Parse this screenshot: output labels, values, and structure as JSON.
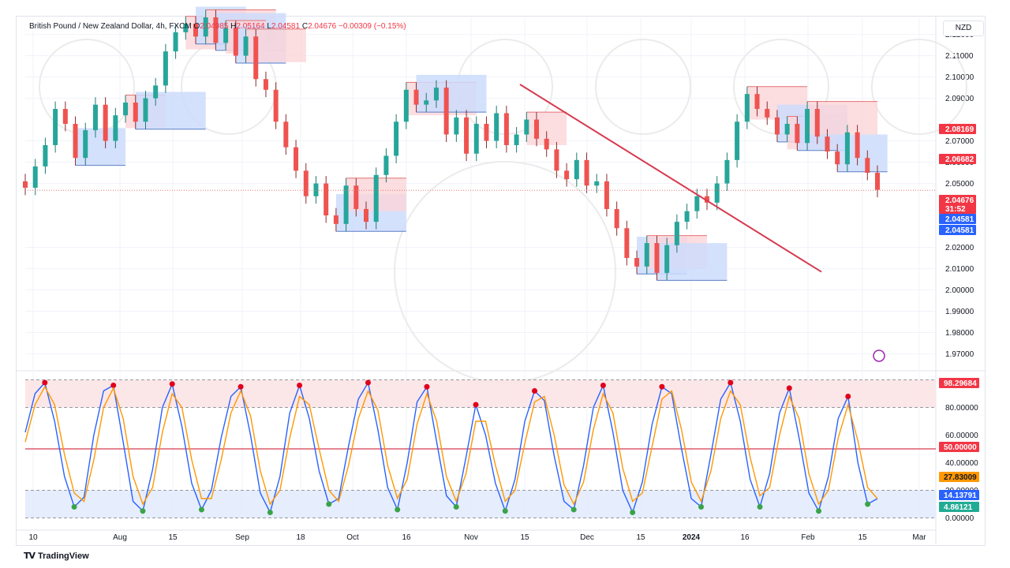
{
  "legend": {
    "symbol": "British Pound / New Zealand Dollar, 4h, FXCM",
    "o_label": "O",
    "o": "2.04985",
    "h_label": "H",
    "h": "2.05164",
    "l_label": "L",
    "l": "2.04581",
    "c_label": "C",
    "c": "2.04676",
    "change": "−0.00309 (−0.15%)"
  },
  "currency_button": "NZD",
  "footer": {
    "brand": "TradingView"
  },
  "colors": {
    "up": "#26a69a",
    "down": "#ef5350",
    "trendline": "#d63a50",
    "supply": "#fbd4d8",
    "demand": "#cddcfc",
    "stoch_k": "#2962ff",
    "stoch_d": "#ff9800",
    "red_tag": "#f23645",
    "blue_tag": "#2962ff",
    "green_tag": "#22ab94"
  },
  "chart_data": [
    {
      "type": "candlestick",
      "title": "British Pound / New Zealand Dollar, 4h, FXCM",
      "y_axis_ticks": [
        "2.12000",
        "2.11000",
        "2.10000",
        "2.09000",
        "2.07000",
        "2.06000",
        "2.05000",
        "2.02000",
        "2.01000",
        "2.00000",
        "1.99000",
        "1.98000",
        "1.97000"
      ],
      "ylim": [
        1.965,
        2.128
      ],
      "x_axis_ticks": [
        "10",
        "Aug",
        "15",
        "Sep",
        "18",
        "Oct",
        "16",
        "Nov",
        "15",
        "Dec",
        "15",
        "2024",
        "16",
        "Feb",
        "15",
        "Mar"
      ],
      "price_tags": [
        {
          "text": "2.08169",
          "kind": "red"
        },
        {
          "text": "2.06682",
          "kind": "red"
        },
        {
          "text": "2.04676",
          "kind": "red"
        },
        {
          "text": "31:52",
          "kind": "red"
        },
        {
          "text": "2.04581",
          "kind": "blue"
        },
        {
          "text": "2.04581",
          "kind": "blue"
        }
      ],
      "last_price": 2.04676,
      "close_series": [
        2.048,
        2.058,
        2.068,
        2.085,
        2.078,
        2.062,
        2.075,
        2.087,
        2.07,
        2.082,
        2.088,
        2.079,
        2.09,
        2.096,
        2.112,
        2.121,
        2.125,
        2.119,
        2.128,
        2.116,
        2.123,
        2.11,
        2.119,
        2.099,
        2.094,
        2.079,
        2.067,
        2.056,
        2.044,
        2.05,
        2.035,
        2.031,
        2.049,
        2.038,
        2.032,
        2.054,
        2.063,
        2.079,
        2.094,
        2.087,
        2.089,
        2.095,
        2.073,
        2.081,
        2.064,
        2.078,
        2.07,
        2.083,
        2.068,
        2.073,
        2.08,
        2.071,
        2.066,
        2.056,
        2.052,
        2.061,
        2.049,
        2.051,
        2.038,
        2.029,
        2.015,
        2.011,
        2.022,
        2.008,
        2.021,
        2.032,
        2.037,
        2.044,
        2.041,
        2.05,
        2.061,
        2.079,
        2.092,
        2.085,
        2.081,
        2.073,
        2.078,
        2.069,
        2.085,
        2.072,
        2.065,
        2.059,
        2.074,
        2.062,
        2.055,
        2.047
      ],
      "trendline": {
        "from": [
          "Nov 11",
          2.0965
        ],
        "to": [
          "Feb 1",
          2.0085
        ]
      },
      "supply_zones": 14,
      "demand_zones": 12
    },
    {
      "type": "line",
      "title": "Stochastic RSI",
      "y_axis_ticks": [
        "80.00000",
        "60.00000",
        "40.00000",
        "20.00000",
        "0.00000"
      ],
      "ylim": [
        -2,
        102
      ],
      "reference_lines": [
        80,
        50,
        20
      ],
      "price_tags": [
        {
          "text": "98.29684",
          "kind": "red"
        },
        {
          "text": "50.00000",
          "kind": "red"
        },
        {
          "text": "27.83009",
          "kind": "orange"
        },
        {
          "text": "14.13791",
          "kind": "blue"
        },
        {
          "text": "4.86121",
          "kind": "green"
        }
      ],
      "series": [
        {
          "values": [
            62,
            90,
            98,
            70,
            30,
            8,
            15,
            60,
            92,
            96,
            55,
            12,
            5,
            35,
            80,
            97,
            66,
            25,
            6,
            20,
            58,
            88,
            95,
            60,
            18,
            4,
            30,
            76,
            96,
            72,
            34,
            10,
            14,
            52,
            86,
            98,
            64,
            22,
            6,
            40,
            84,
            95,
            55,
            16,
            8,
            44,
            82,
            60,
            25,
            5,
            28,
            70,
            92,
            85,
            45,
            12,
            6,
            38,
            80,
            96,
            62,
            20,
            4,
            26,
            68,
            95,
            90,
            50,
            14,
            8,
            46,
            86,
            98,
            70,
            28,
            8,
            32,
            76,
            94,
            58,
            18,
            5,
            30,
            72,
            88,
            40,
            10,
            14
          ]
        },
        {
          "values": [
            55,
            82,
            95,
            82,
            46,
            18,
            12,
            42,
            80,
            94,
            72,
            30,
            10,
            22,
            62,
            90,
            80,
            42,
            14,
            14,
            42,
            76,
            92,
            74,
            34,
            10,
            20,
            58,
            88,
            82,
            50,
            20,
            12,
            38,
            72,
            92,
            78,
            38,
            14,
            28,
            68,
            90,
            70,
            30,
            12,
            32,
            70,
            70,
            38,
            12,
            20,
            54,
            84,
            88,
            60,
            24,
            10,
            26,
            64,
            90,
            76,
            36,
            12,
            18,
            52,
            86,
            92,
            64,
            26,
            12,
            34,
            72,
            92,
            82,
            44,
            16,
            22,
            60,
            88,
            72,
            32,
            10,
            20,
            58,
            82,
            56,
            22,
            14
          ]
        }
      ]
    }
  ]
}
